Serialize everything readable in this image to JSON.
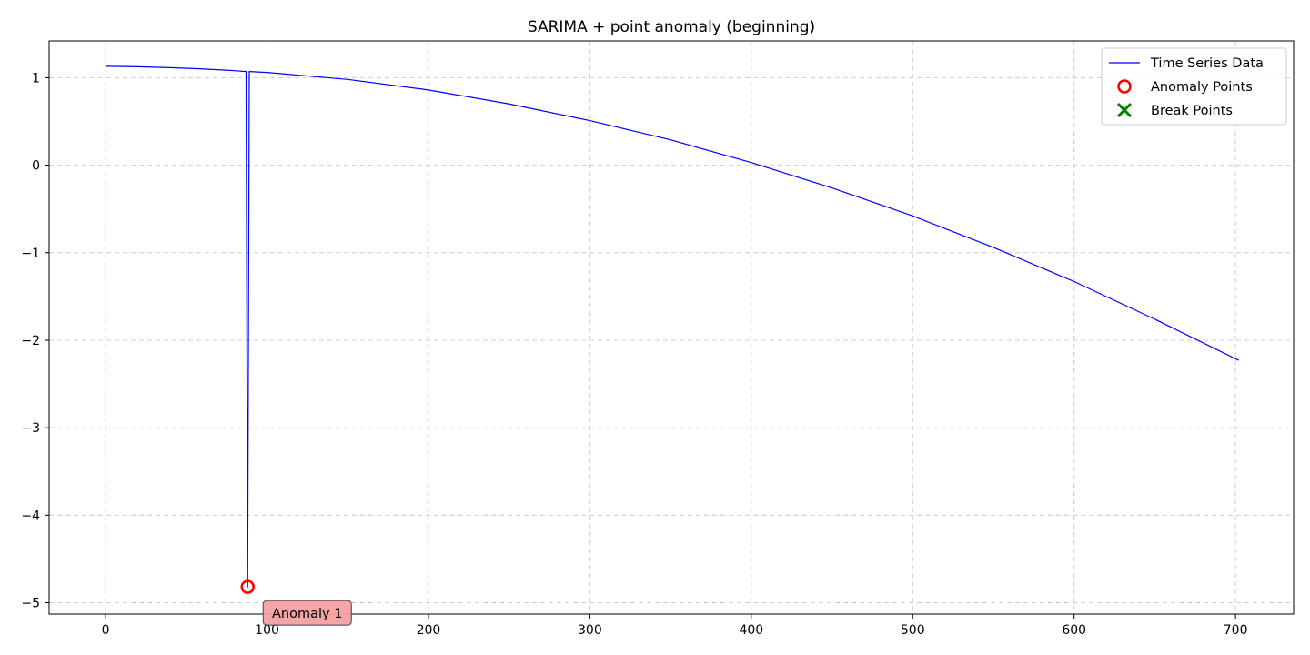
{
  "chart_data": {
    "type": "line",
    "title": "SARIMA + point anomaly (beginning)",
    "xlabel": "",
    "ylabel": "",
    "xlim": [
      -35,
      736
    ],
    "ylim": [
      -5.13,
      1.42
    ],
    "xticks": [
      0,
      100,
      200,
      300,
      400,
      500,
      600,
      700
    ],
    "yticks": [
      1,
      0,
      -1,
      -2,
      -3,
      -4,
      -5
    ],
    "ytick_labels": [
      "1",
      "0",
      "−1",
      "−2",
      "−3",
      "−4",
      "−5"
    ],
    "grid": true,
    "legend_position": "top-right",
    "series": [
      {
        "name": "Time Series Data",
        "color": "#0000ff",
        "x": [
          0,
          20,
          40,
          60,
          80,
          87,
          88,
          89,
          100,
          150,
          200,
          250,
          300,
          350,
          400,
          450,
          500,
          550,
          600,
          650,
          702
        ],
        "y": [
          1.13,
          1.125,
          1.115,
          1.1,
          1.08,
          1.07,
          -4.82,
          1.07,
          1.06,
          0.98,
          0.86,
          0.7,
          0.51,
          0.29,
          0.03,
          -0.26,
          -0.58,
          -0.94,
          -1.33,
          -1.76,
          -2.23
        ]
      }
    ],
    "anomaly_points": {
      "name": "Anomaly Points",
      "color": "#ff0000",
      "x": [
        88
      ],
      "y": [
        -4.82
      ]
    },
    "break_points": {
      "name": "Break Points",
      "color": "#008000",
      "x": [],
      "y": []
    },
    "annotations": [
      {
        "text": "Anomaly 1",
        "x": 88,
        "y": -4.82,
        "box_color": "#f4a0a0"
      }
    ]
  }
}
